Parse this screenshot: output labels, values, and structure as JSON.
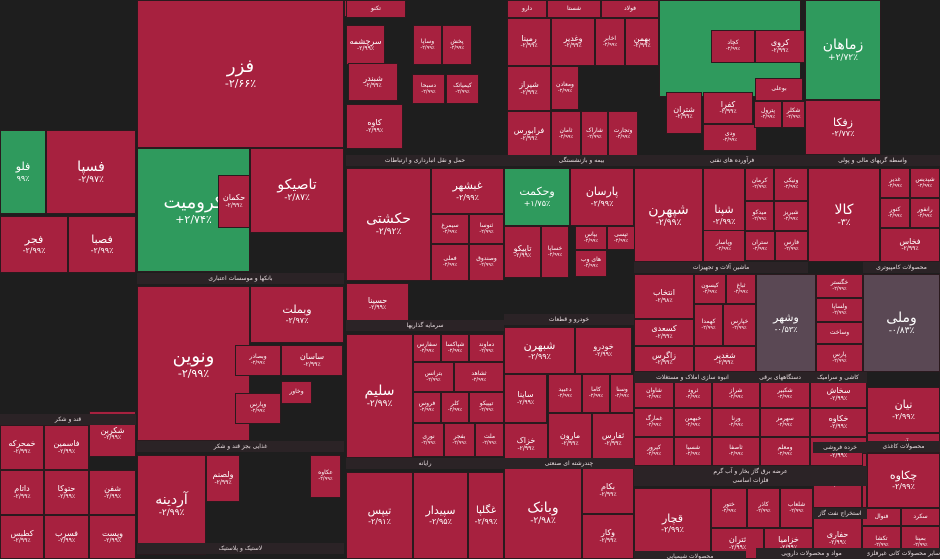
{
  "colors": {
    "negative": "#a7213f",
    "negative_alt": "#9b1f3a",
    "positive": "#2f9a5d",
    "neutral": "#5a4854",
    "background": "#1e1e1e",
    "group_label_bg": "#2b2326"
  },
  "tiles": [
    {
      "name": "فزر",
      "pct": "-۲/۶۶٪",
      "tone": "neg"
    },
    {
      "name": "فسپا",
      "pct": "-۲/۹۷٪",
      "tone": "neg"
    },
    {
      "name": "فلو",
      "pct": "۹۹٪",
      "tone": "pos"
    },
    {
      "name": "کرومیت",
      "pct": "+۲/۷۴٪",
      "tone": "pos"
    },
    {
      "name": "تاصیکو",
      "pct": "-۲/۸۷٪",
      "tone": "neg"
    },
    {
      "name": "فجر",
      "pct": "-۲/۹۹٪",
      "tone": "neg"
    },
    {
      "name": "فصبا",
      "pct": "-۲/۹۹٪",
      "tone": "neg"
    },
    {
      "name": "ونوین",
      "pct": "-۲/۹۹٪",
      "tone": "neg"
    },
    {
      "name": "وبملت",
      "pct": "-۲/۹۷٪",
      "tone": "neg"
    },
    {
      "name": "حکشتی",
      "pct": "-۲/۹۲٪",
      "tone": "neg"
    },
    {
      "name": "وحکمت",
      "pct": "+۱/۷۵٪",
      "tone": "pos"
    },
    {
      "name": "پارسان",
      "pct": "-۲/۹۹٪",
      "tone": "neg"
    },
    {
      "name": "کسرا",
      "pct": "+۲/۹۷٪",
      "tone": "pos"
    },
    {
      "name": "زماهان",
      "pct": "+۲/۷۲٪",
      "tone": "pos"
    },
    {
      "name": "زفکا",
      "pct": "-۲/۷۷٪",
      "tone": "neg"
    },
    {
      "name": "شپهرن",
      "pct": "-۲/۹۹٪",
      "tone": "neg"
    },
    {
      "name": "شپنا",
      "pct": "-۲/۹۹٪",
      "tone": "neg"
    },
    {
      "name": "کالا",
      "pct": "-۳٪",
      "tone": "neg"
    },
    {
      "name": "وشهر",
      "pct": "-۰/۵۳٪",
      "tone": "neu"
    },
    {
      "name": "وملی",
      "pct": "-۰/۸۳٪",
      "tone": "neu"
    },
    {
      "name": "انتخاب",
      "pct": "-۲/۹۸٪",
      "tone": "neg"
    },
    {
      "name": "سلیم",
      "pct": "-۲/۹۹٪",
      "tone": "neg"
    },
    {
      "name": "شبهرن",
      "pct": "-۲/۹۹٪",
      "tone": "neg"
    },
    {
      "name": "خودرو",
      "pct": "-۲/۹۹٪",
      "tone": "neg"
    },
    {
      "name": "شکربن",
      "pct": "-۲/۹۹٪",
      "tone": "neg"
    },
    {
      "name": "آردینه",
      "pct": "-۲/۹۹٪",
      "tone": "neg"
    },
    {
      "name": "تیپس",
      "pct": "-۲/۹۱٪",
      "tone": "neg"
    },
    {
      "name": "سپیدار",
      "pct": "-۲/۹۵٪",
      "tone": "neg"
    },
    {
      "name": "وبانک",
      "pct": "-۲/۹۸٪",
      "tone": "neg"
    },
    {
      "name": "نیان",
      "pct": "-۲/۹۹٪",
      "tone": "neg"
    },
    {
      "name": "چکاوه",
      "pct": "-۲/۹۹٪",
      "tone": "neg"
    },
    {
      "name": "افق",
      "pct": "-۲/۶۷٪",
      "tone": "neg"
    },
    {
      "name": "حفاری",
      "pct": "-۲/۹۹٪",
      "tone": "neg"
    },
    {
      "name": "قچار",
      "pct": "-۲/۹۹٪",
      "tone": "neg"
    },
    {
      "name": "حسینا",
      "pct": "-۲/۹۹٪",
      "tone": "neg"
    },
    {
      "name": "ساسان",
      "pct": "-۲/۹۹٪",
      "tone": "neg"
    },
    {
      "name": "وبصادر",
      "pct": "-۲/۹۹٪",
      "tone": "neg"
    },
    {
      "name": "وپارس",
      "pct": "-۲/۹۹٪",
      "tone": "neg"
    },
    {
      "name": "وخاور",
      "pct": "-۲/۹۹٪",
      "tone": "neg"
    },
    {
      "name": "ساینا",
      "pct": "-۲/۹۹٪",
      "tone": "neg"
    },
    {
      "name": "خزاک",
      "pct": "-۲/۹۹٪",
      "tone": "neg"
    },
    {
      "name": "حکمان",
      "pct": "-۲/۹۹٪",
      "tone": "neg"
    },
    {
      "name": "کگل",
      "pct": "-۲/۹۹٪",
      "tone": "neg"
    },
    {
      "name": "ولصنم",
      "pct": "-۲/۹۹٪",
      "tone": "neg"
    },
    {
      "name": "عکاوه",
      "pct": "-۲/۹۹٪",
      "tone": "neg"
    },
    {
      "name": "تکنو",
      "pct": "-۲/۹۹٪",
      "tone": "neg"
    },
    {
      "name": "سرچشمه",
      "pct": "-۲/۹۹٪",
      "tone": "neg"
    },
    {
      "name": "وساپا",
      "pct": "-۲/۹۹٪",
      "tone": "neg"
    },
    {
      "name": "پخش",
      "pct": "-۲/۹۹٪",
      "tone": "neg"
    },
    {
      "name": "دارو",
      "pct": "-۲/۹۹٪",
      "tone": "neg"
    },
    {
      "name": "شستا",
      "pct": "-۲/۹۹٪",
      "tone": "neg"
    },
    {
      "name": "فولاد",
      "pct": "-۲/۹۹٪",
      "tone": "neg"
    },
    {
      "name": "شبندر",
      "pct": "-۲/۹۹٪",
      "tone": "neg"
    },
    {
      "name": "رمپنا",
      "pct": "-۲/۹۹٪",
      "tone": "neg"
    },
    {
      "name": "وغدیر",
      "pct": "-۲/۹۹٪",
      "tone": "neg"
    },
    {
      "name": "اخابر",
      "pct": "-۲/۹۹٪",
      "tone": "neg"
    },
    {
      "name": "بهمن",
      "pct": "-۲/۹۹٪",
      "tone": "neg"
    },
    {
      "name": "کچاد",
      "pct": "-۲/۹۹٪",
      "tone": "neg"
    },
    {
      "name": "کروی",
      "pct": "-۲/۹۹٪",
      "tone": "neg"
    },
    {
      "name": "شتران",
      "pct": "-۲/۹۹٪",
      "tone": "neg"
    },
    {
      "name": "کفرا",
      "pct": "-۲/۹۹٪",
      "tone": "neg"
    },
    {
      "name": "کاوه",
      "pct": "-۲/۹۹٪",
      "tone": "neg"
    },
    {
      "name": "شیراز",
      "pct": "-۲/۹۹٪",
      "tone": "neg"
    },
    {
      "name": "ومعادن",
      "pct": "-۲/۹۹٪",
      "tone": "neg"
    },
    {
      "name": "ودی",
      "pct": "-۲/۹۹٪",
      "tone": "neg"
    },
    {
      "name": "فرابورس",
      "pct": "-۲/۹۹٪",
      "tone": "neg"
    },
    {
      "name": "ثامان",
      "pct": "-۲/۹۹٪",
      "tone": "neg"
    },
    {
      "name": "شاراک",
      "pct": "-۲/۹۹٪",
      "tone": "neg"
    },
    {
      "name": "وتجارت",
      "pct": "-۲/۹۹٪",
      "tone": "neg"
    },
    {
      "name": "دسبحا",
      "pct": "-۲/۹۹٪",
      "tone": "neg"
    },
    {
      "name": "کیمیاتک",
      "pct": "-۲/۹۹٪",
      "tone": "neg"
    },
    {
      "name": "بوعلی",
      "pct": "-۲/۹۹٪",
      "tone": "neg"
    },
    {
      "name": "پترول",
      "pct": "-۲/۹۹٪",
      "tone": "neg"
    },
    {
      "name": "شکلر",
      "pct": "-۲/۹۹٪",
      "tone": "neg"
    },
    {
      "name": "غبشهر",
      "pct": "-۲/۹۹٪",
      "tone": "neg"
    },
    {
      "name": "سیمرغ",
      "pct": "-۲/۹۹٪",
      "tone": "neg"
    },
    {
      "name": "ثنوسا",
      "pct": "-۲/۹۹٪",
      "tone": "neg"
    },
    {
      "name": "فملی",
      "pct": "-۲/۹۹٪",
      "tone": "neg"
    },
    {
      "name": "وصندوق",
      "pct": "-۲/۹۹٪",
      "tone": "neg"
    },
    {
      "name": "تاپیکو",
      "pct": "-۲/۹۹٪",
      "tone": "neg"
    },
    {
      "name": "خساپا",
      "pct": "-۲/۹۹٪",
      "tone": "neg"
    },
    {
      "name": "بپاس",
      "pct": "-۲/۹۹٪",
      "tone": "neg"
    },
    {
      "name": "تپسی",
      "pct": "-۲/۹۹٪",
      "tone": "neg"
    },
    {
      "name": "های وب",
      "pct": "-۲/۹۹٪",
      "tone": "neg"
    },
    {
      "name": "کرمان",
      "pct": "-۲/۹۹٪",
      "tone": "neg"
    },
    {
      "name": "ونیکی",
      "pct": "-۲/۹۹٪",
      "tone": "neg"
    },
    {
      "name": "میدکو",
      "pct": "-۲/۹۹٪",
      "tone": "neg"
    },
    {
      "name": "شبریز",
      "pct": "-۲/۹۹٪",
      "tone": "neg"
    },
    {
      "name": "وپاسار",
      "pct": "-۲/۹۹٪",
      "tone": "neg"
    },
    {
      "name": "ستران",
      "pct": "-۲/۹۹٪",
      "tone": "neg"
    },
    {
      "name": "فارس",
      "pct": "-۲/۹۹٪",
      "tone": "neg"
    },
    {
      "name": "غدیر",
      "pct": "-۲/۹۹٪",
      "tone": "neg"
    },
    {
      "name": "شپدیس",
      "pct": "-۲/۹۹٪",
      "tone": "neg"
    },
    {
      "name": "کنور",
      "pct": "-۲/۹۹٪",
      "tone": "neg"
    },
    {
      "name": "رانفور",
      "pct": "-۲/۹۹٪",
      "tone": "neg"
    },
    {
      "name": "فخاس",
      "pct": "-۲/۹۹٪",
      "tone": "neg"
    },
    {
      "name": "کیسون",
      "pct": "-۲/۹۹٪",
      "tone": "neg"
    },
    {
      "name": "ثباغ",
      "pct": "-۲/۹۹٪",
      "tone": "neg"
    },
    {
      "name": "کهمدا",
      "pct": "-۲/۹۹٪",
      "tone": "neg"
    },
    {
      "name": "خپارس",
      "pct": "-۲/۹۹٪",
      "tone": "neg"
    },
    {
      "name": "کسعدی",
      "pct": "-۲/۹۹٪",
      "tone": "neg"
    },
    {
      "name": "زاگرس",
      "pct": "-۲/۹۹٪",
      "tone": "neg"
    },
    {
      "name": "شغدیر",
      "pct": "-۲/۹۹٪",
      "tone": "neg"
    },
    {
      "name": "خگستر",
      "pct": "-۲/۹۹٪",
      "tone": "neg"
    },
    {
      "name": "ولساپا",
      "pct": "-۲/۹۹٪",
      "tone": "neg"
    },
    {
      "name": "وساخت",
      "pct": "-۲/۹۹٪",
      "tone": "neg"
    },
    {
      "name": "پارس",
      "pct": "-۲/۹۹٪",
      "tone": "neg"
    },
    {
      "name": "سفارس",
      "pct": "-۲/۹۹٪",
      "tone": "neg"
    },
    {
      "name": "شپاکسا",
      "pct": "-۲/۹۹٪",
      "tone": "neg"
    },
    {
      "name": "دماوند",
      "pct": "-۲/۹۹٪",
      "tone": "neg"
    },
    {
      "name": "بترانس",
      "pct": "-۲/۹۹٪",
      "tone": "neg"
    },
    {
      "name": "ثشاهد",
      "pct": "-۲/۹۹٪",
      "tone": "neg"
    },
    {
      "name": "فروس",
      "pct": "-۲/۹۹٪",
      "tone": "neg"
    },
    {
      "name": "کلر",
      "pct": "-۲/۹۹٪",
      "tone": "neg"
    },
    {
      "name": "تیپیکو",
      "pct": "-۲/۹۹٪",
      "tone": "neg"
    },
    {
      "name": "نوری",
      "pct": "-۲/۹۹٪",
      "tone": "neg"
    },
    {
      "name": "بفجر",
      "pct": "-۲/۹۹٪",
      "tone": "neg"
    },
    {
      "name": "ملت",
      "pct": "-۲/۹۹٪",
      "tone": "neg"
    },
    {
      "name": "دعبید",
      "pct": "-۲/۹۹٪",
      "tone": "neg"
    },
    {
      "name": "کاما",
      "pct": "-۲/۹۹٪",
      "tone": "neg"
    },
    {
      "name": "وسنا",
      "pct": "-۲/۹۹٪",
      "tone": "neg"
    },
    {
      "name": "مارون",
      "pct": "-۲/۹۹٪",
      "tone": "neg"
    },
    {
      "name": "ثفارس",
      "pct": "-۲/۹۹٪",
      "tone": "neg"
    },
    {
      "name": "شاوان",
      "pct": "-۲/۹۹٪",
      "tone": "neg"
    },
    {
      "name": "ثرود",
      "pct": "-۲/۹۹٪",
      "tone": "neg"
    },
    {
      "name": "شراز",
      "pct": "-۲/۹۹٪",
      "tone": "neg"
    },
    {
      "name": "شکبیر",
      "pct": "-۲/۹۹٪",
      "tone": "neg"
    },
    {
      "name": "سخاش",
      "pct": "-۲/۹۹٪",
      "tone": "neg"
    },
    {
      "name": "غمارگ",
      "pct": "-۲/۹۹٪",
      "tone": "neg"
    },
    {
      "name": "خبهمن",
      "pct": "-۲/۹۹٪",
      "tone": "neg"
    },
    {
      "name": "ورنا",
      "pct": "-۲/۹۹٪",
      "tone": "neg"
    },
    {
      "name": "سهرمز",
      "pct": "-۲/۹۹٪",
      "tone": "neg"
    },
    {
      "name": "خکاوه",
      "pct": "-۲/۹۹٪",
      "tone": "neg"
    },
    {
      "name": "کپرور",
      "pct": "-۲/۹۹٪",
      "tone": "neg"
    },
    {
      "name": "شسپا",
      "pct": "-۲/۹۹٪",
      "tone": "neg"
    },
    {
      "name": "ثاصفا",
      "pct": "-۲/۹۹٪",
      "tone": "neg"
    },
    {
      "name": "ومعلم",
      "pct": "-۲/۹۹٪",
      "tone": "neg"
    },
    {
      "name": "کحافظ",
      "pct": "-۲/۹۹٪",
      "tone": "neg"
    },
    {
      "name": "بکام",
      "pct": "-۲/۹۹٪",
      "tone": "neg"
    },
    {
      "name": "وکار",
      "pct": "-۲/۹۹٪",
      "tone": "neg"
    },
    {
      "name": "غگلپا",
      "pct": "-۲/۹۹٪",
      "tone": "neg"
    },
    {
      "name": "ختور",
      "pct": "-۲/۹۹٪",
      "tone": "neg"
    },
    {
      "name": "کاذر",
      "pct": "-۲/۹۹٪",
      "tone": "neg"
    },
    {
      "name": "شلعاب",
      "pct": "-۲/۹۹٪",
      "tone": "neg"
    },
    {
      "name": "ثتران",
      "pct": "-۲/۹۹٪",
      "tone": "neg"
    },
    {
      "name": "خزامیا",
      "pct": "-۲/۹۹٪",
      "tone": "neg"
    },
    {
      "name": "فاذر",
      "pct": "-۲/۹۹٪",
      "tone": "neg"
    },
    {
      "name": "فنوال",
      "pct": "-۲/۹۹٪",
      "tone": "neg"
    },
    {
      "name": "سکرد",
      "pct": "-۲/۹۹٪",
      "tone": "neg"
    },
    {
      "name": "تکشا",
      "pct": "-۲/۹۹٪",
      "tone": "neg"
    },
    {
      "name": "بمپنا",
      "pct": "-۲/۹۹٪",
      "tone": "neg"
    },
    {
      "name": "وآفری",
      "pct": "-۲/۹۹٪",
      "tone": "neg"
    },
    {
      "name": "خمحرکه",
      "pct": "-۲/۹۹٪",
      "tone": "neg"
    },
    {
      "name": "فاسمین",
      "pct": "-۲/۹۹٪",
      "tone": "neg"
    },
    {
      "name": "داتام",
      "pct": "-۲/۹۹٪",
      "tone": "neg"
    },
    {
      "name": "حتوکا",
      "pct": "-۲/۹۹٪",
      "tone": "neg"
    },
    {
      "name": "کطبس",
      "pct": "-۲/۹۹٪",
      "tone": "neg"
    },
    {
      "name": "فسرب",
      "pct": "-۲/۹۹٪",
      "tone": "neg"
    },
    {
      "name": "شفن",
      "pct": "-۲/۹۹٪",
      "tone": "neg"
    },
    {
      "name": "وپست",
      "pct": "-۲/۹۹٪",
      "tone": "neg"
    },
    {
      "name": "ساروم",
      "pct": "-۲/۹۹٪",
      "tone": "neg"
    }
  ],
  "groups": [
    "بانکها و موسسات اعتباری",
    "حمل و نقل انبارداری و ارتباطات",
    "بیمه و بازنشستگی",
    "فرآورده های نفتی",
    "واسطه گریهای مالی و پولی",
    "محصولات کامپیوتری",
    "سرمایه گذاریها",
    "خودرو و قطعات",
    "ماشین آلات و تجهیزات",
    "انبوه سازی املاک و مستغلات",
    "دستگاههای برقی",
    "کاشی و سرامیک",
    "غذایی بجز قند و شکر",
    "رایانه",
    "چندرشته ای صنعتی",
    "عرضه برق گاز بخار و آب گرم",
    "فلزات اساسی",
    "استخراج نفت گاز",
    "خرده فروشی",
    "محصولات کاغذی",
    "قند و شکر",
    "لاستیک و پلاستیک",
    "محصولات شیمیایی",
    "مواد و محصولات دارویی",
    "سایر محصولات کانی غیرفلزی"
  ]
}
